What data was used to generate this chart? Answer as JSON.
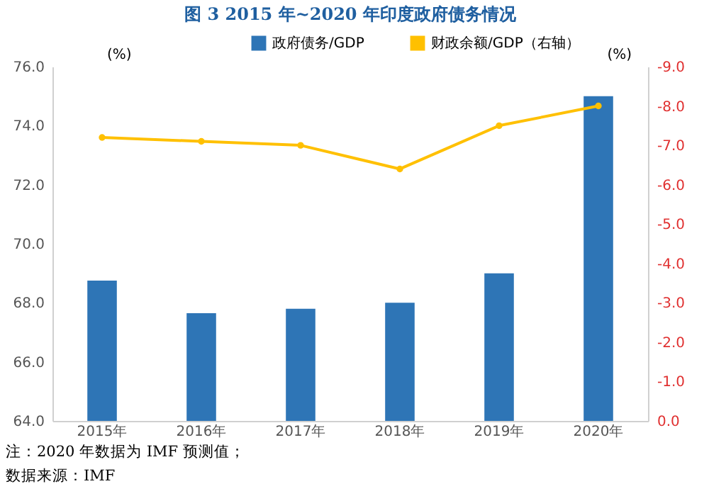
{
  "chart_data": {
    "type": "bar",
    "title": "图 3   2015 年~2020 年印度政府债务情况",
    "categories": [
      "2015年",
      "2016年",
      "2017年",
      "2018年",
      "2019年",
      "2020年"
    ],
    "series": [
      {
        "name": "政府债务/GDP",
        "color": "#2e75b6",
        "values": [
          68.75,
          67.65,
          67.8,
          68.0,
          69.0,
          75.0
        ]
      },
      {
        "name": "财政余额/GDP（右轴）",
        "type": "line",
        "axis": "y2",
        "color": "#ffc000",
        "values": [
          -7.2,
          -7.1,
          -7.0,
          -6.4,
          -7.5,
          -8.0
        ]
      }
    ],
    "ylabel": "(%)",
    "y2label": "(%)",
    "ylim": [
      64,
      76
    ],
    "yticks": [
      {
        "value": 64,
        "label": "64.0"
      },
      {
        "value": 66,
        "label": "66.0"
      },
      {
        "value": 68,
        "label": "68.0"
      },
      {
        "value": 70,
        "label": "70.0"
      },
      {
        "value": 72,
        "label": "72.0"
      },
      {
        "value": 74,
        "label": "74.0"
      },
      {
        "value": 76,
        "label": "76.0"
      }
    ],
    "y2lim": [
      0,
      -9
    ],
    "y2ticks": [
      {
        "value": 0,
        "label": "0.0"
      },
      {
        "value": -1,
        "label": "-1.0"
      },
      {
        "value": -2,
        "label": "-2.0"
      },
      {
        "value": -3,
        "label": "-3.0"
      },
      {
        "value": -4,
        "label": "-4.0"
      },
      {
        "value": -5,
        "label": "-5.0"
      },
      {
        "value": -6,
        "label": "-6.0"
      },
      {
        "value": -7,
        "label": "-7.0"
      },
      {
        "value": -8,
        "label": "-8.0"
      },
      {
        "value": -9,
        "label": "-9.0"
      }
    ],
    "legend": "top",
    "marker": "circle",
    "grid": false,
    "annotations": [
      "注：2020 年数据为 IMF 预测值；",
      "数据来源：IMF"
    ]
  }
}
